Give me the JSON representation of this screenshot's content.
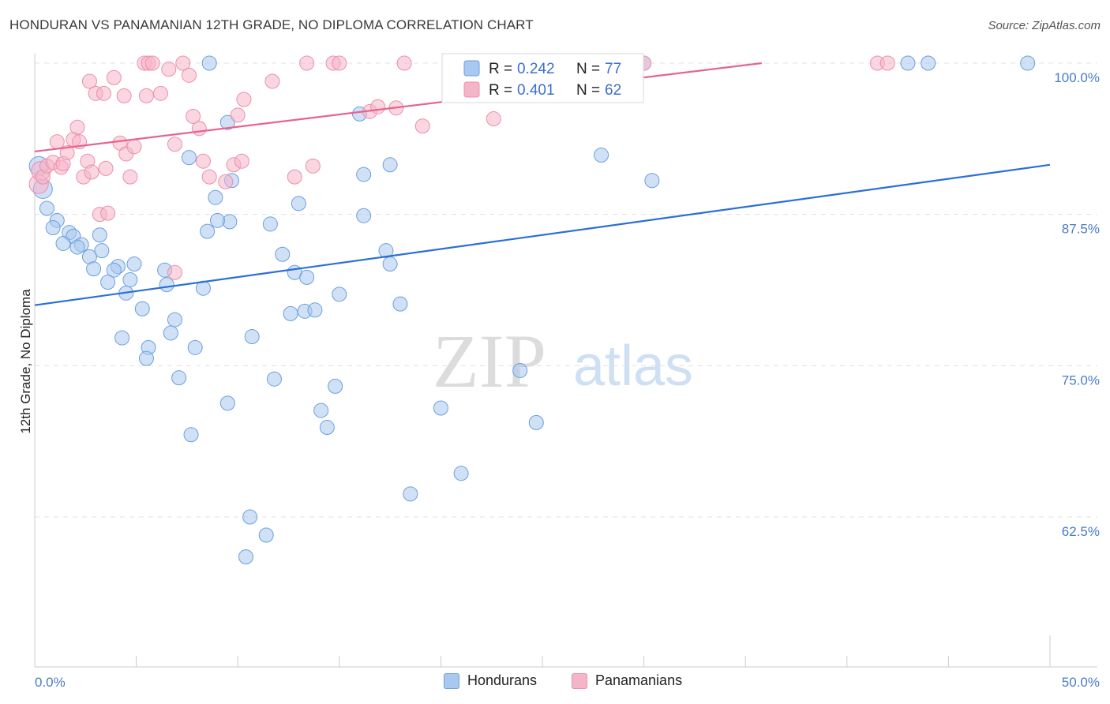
{
  "header": {
    "title": "HONDURAN VS PANAMANIAN 12TH GRADE, NO DIPLOMA CORRELATION CHART",
    "source": "Source: ZipAtlas.com"
  },
  "watermark": {
    "zip": "ZIP",
    "atlas": "atlas"
  },
  "legend": {
    "r_label": "R = ",
    "n_label": "N = ",
    "rows": [
      {
        "r": "0.242",
        "n": "77",
        "color": "#a9c8ef"
      },
      {
        "r": "0.401",
        "n": "62",
        "color": "#f5b5c8"
      }
    ]
  },
  "bottom_legend": [
    {
      "label": "Hondurans",
      "color": "#a9c8ef"
    },
    {
      "label": "Panamanians",
      "color": "#f5b5c8"
    }
  ],
  "chart_data": {
    "type": "scatter",
    "title": "HONDURAN VS PANAMANIAN 12TH GRADE, NO DIPLOMA CORRELATION CHART",
    "xlabel": "",
    "ylabel": "12th Grade, No Diploma",
    "xlim": [
      0,
      50
    ],
    "ylim": [
      50,
      102
    ],
    "x_ticks": [
      "0.0%",
      "50.0%"
    ],
    "y_ticks": [
      {
        "value": 62.5,
        "label": "62.5%"
      },
      {
        "value": 75.0,
        "label": "75.0%"
      },
      {
        "value": 87.5,
        "label": "87.5%"
      },
      {
        "value": 100.0,
        "label": "100.0%"
      }
    ],
    "grid": true,
    "legend_position": "top-center",
    "series": [
      {
        "name": "Hondurans",
        "color": "#a9c8ef",
        "stroke": "#6a9fe0",
        "trend": {
          "x": [
            0,
            50
          ],
          "y": [
            80.0,
            91.6
          ],
          "color": "#2a6fd6"
        },
        "points": [
          [
            0.2,
            91.5
          ],
          [
            0.4,
            89.6
          ],
          [
            0.6,
            88.0
          ],
          [
            1.1,
            87.0
          ],
          [
            0.9,
            86.4
          ],
          [
            1.7,
            86.0
          ],
          [
            1.9,
            85.7
          ],
          [
            1.4,
            85.1
          ],
          [
            2.3,
            85.0
          ],
          [
            2.1,
            84.8
          ],
          [
            3.2,
            85.8
          ],
          [
            3.3,
            84.5
          ],
          [
            2.7,
            84.0
          ],
          [
            2.9,
            83.0
          ],
          [
            4.1,
            83.2
          ],
          [
            4.9,
            83.4
          ],
          [
            3.9,
            82.9
          ],
          [
            6.4,
            82.9
          ],
          [
            4.7,
            82.1
          ],
          [
            3.6,
            81.9
          ],
          [
            6.5,
            81.7
          ],
          [
            4.5,
            81.0
          ],
          [
            8.3,
            81.4
          ],
          [
            5.3,
            79.7
          ],
          [
            6.9,
            78.8
          ],
          [
            6.7,
            77.7
          ],
          [
            4.3,
            77.3
          ],
          [
            5.6,
            76.5
          ],
          [
            7.9,
            76.5
          ],
          [
            5.5,
            75.6
          ],
          [
            7.1,
            74.0
          ],
          [
            9.5,
            71.9
          ],
          [
            7.7,
            69.3
          ],
          [
            8.6,
            100.0
          ],
          [
            7.6,
            92.2
          ],
          [
            9.5,
            95.1
          ],
          [
            8.9,
            88.9
          ],
          [
            9.7,
            90.3
          ],
          [
            9.6,
            86.9
          ],
          [
            8.5,
            86.1
          ],
          [
            11.6,
            86.7
          ],
          [
            12.2,
            84.2
          ],
          [
            12.8,
            82.7
          ],
          [
            13.4,
            82.3
          ],
          [
            13.0,
            88.4
          ],
          [
            12.6,
            79.3
          ],
          [
            13.3,
            79.5
          ],
          [
            13.8,
            79.6
          ],
          [
            10.7,
            77.4
          ],
          [
            11.8,
            73.9
          ],
          [
            15.0,
            80.9
          ],
          [
            14.8,
            73.3
          ],
          [
            14.1,
            71.3
          ],
          [
            14.4,
            69.9
          ],
          [
            16.0,
            95.8
          ],
          [
            16.2,
            90.8
          ],
          [
            16.2,
            87.4
          ],
          [
            17.3,
            84.5
          ],
          [
            17.5,
            83.4
          ],
          [
            17.5,
            91.6
          ],
          [
            18.0,
            80.1
          ],
          [
            20.0,
            71.5
          ],
          [
            21.0,
            66.1
          ],
          [
            18.5,
            64.4
          ],
          [
            10.6,
            62.5
          ],
          [
            11.4,
            61.0
          ],
          [
            10.4,
            59.2
          ],
          [
            23.9,
            74.6
          ],
          [
            24.7,
            70.3
          ],
          [
            27.9,
            92.4
          ],
          [
            30.4,
            90.3
          ],
          [
            27.6,
            100.0
          ],
          [
            43.0,
            100.0
          ],
          [
            44.0,
            100.0
          ],
          [
            48.9,
            100.0
          ],
          [
            30.0,
            100.0
          ],
          [
            9.0,
            87.0
          ]
        ]
      },
      {
        "name": "Panamanians",
        "color": "#f5b5c8",
        "stroke": "#ec8fa9",
        "trend": {
          "x": [
            0,
            35.8
          ],
          "y": [
            92.7,
            100.0
          ],
          "color": "#e8638f"
        },
        "points": [
          [
            0.2,
            90.0
          ],
          [
            0.3,
            91.1
          ],
          [
            0.4,
            90.6
          ],
          [
            0.6,
            91.5
          ],
          [
            0.9,
            91.8
          ],
          [
            1.1,
            93.5
          ],
          [
            1.3,
            91.4
          ],
          [
            1.4,
            91.7
          ],
          [
            1.6,
            92.6
          ],
          [
            1.9,
            93.7
          ],
          [
            2.1,
            94.7
          ],
          [
            2.2,
            93.5
          ],
          [
            2.4,
            90.6
          ],
          [
            2.6,
            91.9
          ],
          [
            2.8,
            91.0
          ],
          [
            2.7,
            98.5
          ],
          [
            3.0,
            97.5
          ],
          [
            3.4,
            97.5
          ],
          [
            3.9,
            98.8
          ],
          [
            3.2,
            87.5
          ],
          [
            3.6,
            87.6
          ],
          [
            3.5,
            91.3
          ],
          [
            4.2,
            93.4
          ],
          [
            4.5,
            92.5
          ],
          [
            4.7,
            90.6
          ],
          [
            4.4,
            97.3
          ],
          [
            4.9,
            93.1
          ],
          [
            5.4,
            100.0
          ],
          [
            5.6,
            100.0
          ],
          [
            5.8,
            100.0
          ],
          [
            6.2,
            97.5
          ],
          [
            5.5,
            97.3
          ],
          [
            6.6,
            99.5
          ],
          [
            6.9,
            93.3
          ],
          [
            7.3,
            100.0
          ],
          [
            7.6,
            99.0
          ],
          [
            7.8,
            95.6
          ],
          [
            8.1,
            94.6
          ],
          [
            8.3,
            91.9
          ],
          [
            8.6,
            90.6
          ],
          [
            9.4,
            90.2
          ],
          [
            9.8,
            91.6
          ],
          [
            10.2,
            91.9
          ],
          [
            10.0,
            95.7
          ],
          [
            10.3,
            97.0
          ],
          [
            11.7,
            98.5
          ],
          [
            12.8,
            90.6
          ],
          [
            13.7,
            91.5
          ],
          [
            14.7,
            100.0
          ],
          [
            15.0,
            100.0
          ],
          [
            16.5,
            96.0
          ],
          [
            16.9,
            96.4
          ],
          [
            17.8,
            96.3
          ],
          [
            18.2,
            100.0
          ],
          [
            19.1,
            94.8
          ],
          [
            22.6,
            95.4
          ],
          [
            25.0,
            100.0
          ],
          [
            30.0,
            100.0
          ],
          [
            41.5,
            100.0
          ],
          [
            42.0,
            100.0
          ],
          [
            6.9,
            82.7
          ],
          [
            13.4,
            100.0
          ]
        ]
      }
    ]
  }
}
